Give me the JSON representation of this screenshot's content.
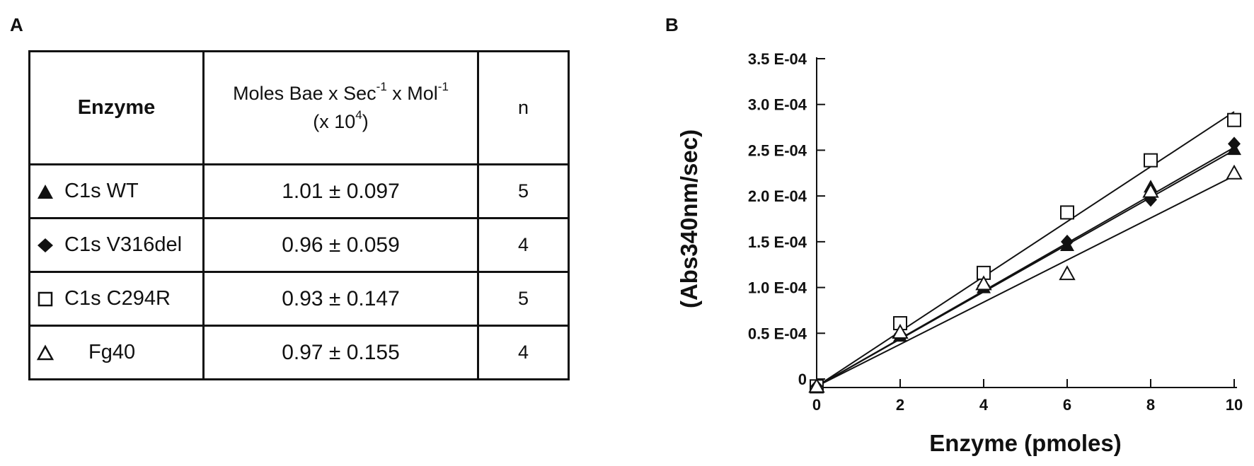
{
  "panels": {
    "a_label": "A",
    "b_label": "B"
  },
  "table": {
    "headers": {
      "enzyme": "Enzyme",
      "rate_line1_a": "Moles Bae x Sec",
      "rate_line1_b": "-1",
      "rate_line1_c": " x Mol",
      "rate_line1_d": "-1",
      "rate_line2_a": "(x 10",
      "rate_line2_b": "4",
      "rate_line2_c": ")",
      "n": "n"
    },
    "rows": [
      {
        "symbol": "filled-triangle-icon",
        "enzyme": "C1s WT",
        "rate": "1.01 ± 0.097",
        "n": "5"
      },
      {
        "symbol": "filled-diamond-icon",
        "enzyme": "C1s V316del",
        "rate": "0.96 ± 0.059",
        "n": "4"
      },
      {
        "symbol": "open-square-icon",
        "enzyme": "C1s C294R",
        "rate": "0.93 ± 0.147",
        "n": "5"
      },
      {
        "symbol": "open-triangle-icon",
        "enzyme": "Fg40",
        "rate": "0.97 ± 0.155",
        "n": "4"
      }
    ]
  },
  "chart_data": {
    "type": "scatter",
    "title": "",
    "xlabel": "Enzyme (pmoles)",
    "ylabel": "(Abs340nm/sec)",
    "xlim": [
      0,
      10
    ],
    "ylim": [
      0,
      0.00035
    ],
    "x_ticks": [
      0,
      2,
      4,
      6,
      8,
      10
    ],
    "x_tick_labels": [
      "0",
      "2",
      "4",
      "6",
      "8",
      "10"
    ],
    "y_ticks": [
      0,
      5e-05,
      0.0001,
      0.00015,
      0.0002,
      0.00025,
      0.0003,
      0.00035
    ],
    "y_tick_labels": [
      "0",
      "0.5 E-04",
      "1.0 E-04",
      "1.5 E-04",
      "2.0 E-04",
      "2.5 E-04",
      "3.0 E-04",
      "3.5 E-04"
    ],
    "grid": false,
    "legend": "none",
    "series": [
      {
        "marker": "open-square",
        "x": [
          0,
          2,
          4,
          6,
          8,
          10
        ],
        "y": [
          -8e-06,
          6.1e-05,
          0.000116,
          0.000182,
          0.000239,
          0.000283
        ],
        "fit_line": [
          [
            0,
            -8e-06
          ],
          [
            10,
            0.000292
          ]
        ]
      },
      {
        "marker": "filled-triangle",
        "x": [
          0,
          2,
          4,
          6,
          8,
          10
        ],
        "y": [
          -8e-06,
          4.7e-05,
          0.0001,
          0.000146,
          0.00021,
          0.000251
        ],
        "fit_line": [
          [
            0,
            -8e-06
          ],
          [
            10,
            0.00025
          ]
        ]
      },
      {
        "marker": "filled-diamond",
        "x": [
          0,
          2,
          4,
          6,
          8,
          10
        ],
        "y": [
          -8e-06,
          4.9e-05,
          0.000102,
          0.00015,
          0.000196,
          0.000257
        ],
        "fit_line": [
          [
            0,
            -8e-06
          ],
          [
            10,
            0.000253
          ]
        ]
      },
      {
        "marker": "open-triangle",
        "x": [
          0,
          2,
          4,
          6,
          8,
          10
        ],
        "y": [
          -8e-06,
          5.1e-05,
          0.000104,
          0.000115,
          0.000205,
          0.000225
        ],
        "fit_line": [
          [
            0,
            -8e-06
          ],
          [
            10,
            0.000222
          ]
        ]
      }
    ]
  }
}
